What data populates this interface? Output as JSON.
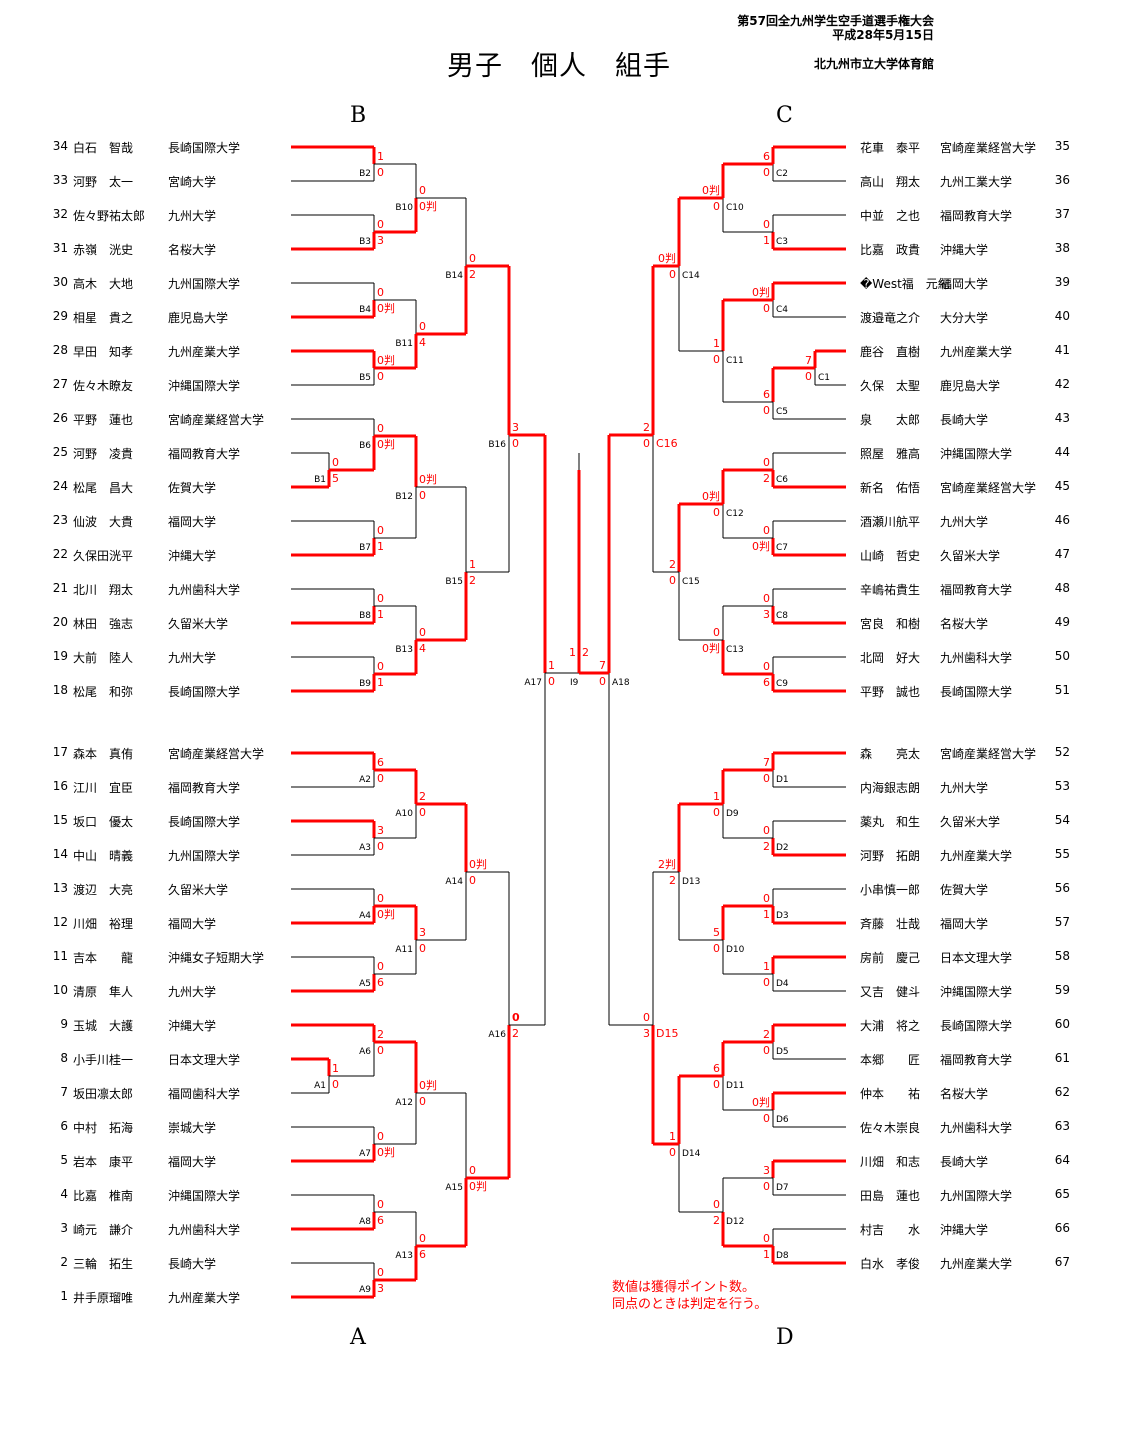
{
  "header": {
    "title": "男子　個人　組手",
    "event": "第57回全九州学生空手道選手権大会",
    "date": "平成28年5月15日",
    "venue": "北九州市立大学体育館"
  },
  "blocks": {
    "top_left": "B",
    "top_right": "C",
    "bottom_left": "A",
    "bottom_right": "D"
  },
  "note": [
    "数値は獲得ポイント数。",
    "同点のときは判定を行う。"
  ],
  "colors": {
    "winner_line": "#ff0000",
    "line": "#000000",
    "score": "#ff0000"
  },
  "players": {
    "left": [
      {
        "num": "34",
        "name": "白石　智哉",
        "univ": "長崎国際大学"
      },
      {
        "num": "33",
        "name": "河野　太一",
        "univ": "宮崎大学"
      },
      {
        "num": "32",
        "name": "佐々野祐太郎",
        "univ": "九州大学"
      },
      {
        "num": "31",
        "name": "赤嶺　洸史",
        "univ": "名桜大学"
      },
      {
        "num": "30",
        "name": "高木　大地",
        "univ": "九州国際大学"
      },
      {
        "num": "29",
        "name": "相星　貴之",
        "univ": "鹿児島大学"
      },
      {
        "num": "28",
        "name": "早田　知孝",
        "univ": "九州産業大学"
      },
      {
        "num": "27",
        "name": "佐々木瞭友",
        "univ": "沖縄国際大学"
      },
      {
        "num": "26",
        "name": "平野　蓮也",
        "univ": "宮崎産業経営大学"
      },
      {
        "num": "25",
        "name": "河野　凌貴",
        "univ": "福岡教育大学"
      },
      {
        "num": "24",
        "name": "松尾　昌大",
        "univ": "佐賀大学"
      },
      {
        "num": "23",
        "name": "仙波　大貴",
        "univ": "福岡大学"
      },
      {
        "num": "22",
        "name": "久保田洸平",
        "univ": "沖縄大学"
      },
      {
        "num": "21",
        "name": "北川　翔太",
        "univ": "九州歯科大学"
      },
      {
        "num": "20",
        "name": "林田　強志",
        "univ": "久留米大学"
      },
      {
        "num": "19",
        "name": "大前　陸人",
        "univ": "九州大学"
      },
      {
        "num": "18",
        "name": "松尾　和弥",
        "univ": "長崎国際大学"
      },
      {
        "num": "17",
        "name": "森本　真侑",
        "univ": "宮崎産業経営大学"
      },
      {
        "num": "16",
        "name": "江川　宜臣",
        "univ": "福岡教育大学"
      },
      {
        "num": "15",
        "name": "坂口　優太",
        "univ": "長崎国際大学"
      },
      {
        "num": "14",
        "name": "中山　晴義",
        "univ": "九州国際大学"
      },
      {
        "num": "13",
        "name": "渡辺　大亮",
        "univ": "久留米大学"
      },
      {
        "num": "12",
        "name": "川畑　裕理",
        "univ": "福岡大学"
      },
      {
        "num": "11",
        "name": "吉本　　龍",
        "univ": "沖縄女子短期大学"
      },
      {
        "num": "10",
        "name": "清原　隼人",
        "univ": "九州大学"
      },
      {
        "num": "9",
        "name": "玉城　大護",
        "univ": "沖縄大学"
      },
      {
        "num": "8",
        "name": "小手川桂一",
        "univ": "日本文理大学"
      },
      {
        "num": "7",
        "name": "坂田凛太郎",
        "univ": "福岡歯科大学"
      },
      {
        "num": "6",
        "name": "中村　拓海",
        "univ": "崇城大学"
      },
      {
        "num": "5",
        "name": "岩本　康平",
        "univ": "福岡大学"
      },
      {
        "num": "4",
        "name": "比嘉　椎南",
        "univ": "沖縄国際大学"
      },
      {
        "num": "3",
        "name": "崎元　謙介",
        "univ": "九州歯科大学"
      },
      {
        "num": "2",
        "name": "三輪　拓生",
        "univ": "長崎大学"
      },
      {
        "num": "1",
        "name": "井手原瑠唯",
        "univ": "九州産業大学"
      }
    ],
    "right": [
      {
        "num": "35",
        "name": "花車　泰平",
        "univ": "宮崎産業経営大学"
      },
      {
        "num": "36",
        "name": "高山　翔太",
        "univ": "九州工業大学"
      },
      {
        "num": "37",
        "name": "中並　之也",
        "univ": "福岡教育大学"
      },
      {
        "num": "38",
        "name": "比嘉　政貴",
        "univ": "沖縄大学"
      },
      {
        "num": "39",
        "name": "�West福　元紀",
        "univ": "福岡大学"
      },
      {
        "num": "40",
        "name": "渡邉竜之介",
        "univ": "大分大学"
      },
      {
        "num": "41",
        "name": "鹿谷　直樹",
        "univ": "九州産業大学"
      },
      {
        "num": "42",
        "name": "久保　太聖",
        "univ": "鹿児島大学"
      },
      {
        "num": "43",
        "name": "泉　　太郎",
        "univ": "長崎大学"
      },
      {
        "num": "44",
        "name": "照屋　雅高",
        "univ": "沖縄国際大学"
      },
      {
        "num": "45",
        "name": "新名　佑悟",
        "univ": "宮崎産業経営大学"
      },
      {
        "num": "46",
        "name": "酒瀬川航平",
        "univ": "九州大学"
      },
      {
        "num": "47",
        "name": "山崎　哲史",
        "univ": "久留米大学"
      },
      {
        "num": "48",
        "name": "辛嶋祐貴生",
        "univ": "福岡教育大学"
      },
      {
        "num": "49",
        "name": "宮良　和樹",
        "univ": "名桜大学"
      },
      {
        "num": "50",
        "name": "北岡　好大",
        "univ": "九州歯科大学"
      },
      {
        "num": "51",
        "name": "平野　誠也",
        "univ": "長崎国際大学"
      },
      {
        "num": "52",
        "name": "森　　亮太",
        "univ": "宮崎産業経営大学"
      },
      {
        "num": "53",
        "name": "内海銀志朗",
        "univ": "九州大学"
      },
      {
        "num": "54",
        "name": "薬丸　和生",
        "univ": "久留米大学"
      },
      {
        "num": "55",
        "name": "河野　拓朗",
        "univ": "九州産業大学"
      },
      {
        "num": "56",
        "name": "小串慎一郎",
        "univ": "佐賀大学"
      },
      {
        "num": "57",
        "name": "斉藤　壮哉",
        "univ": "福岡大学"
      },
      {
        "num": "58",
        "name": "房前　慶己",
        "univ": "日本文理大学"
      },
      {
        "num": "59",
        "name": "又吉　健斗",
        "univ": "沖縄国際大学"
      },
      {
        "num": "60",
        "name": "大浦　将之",
        "univ": "長崎国際大学"
      },
      {
        "num": "61",
        "name": "本郷　　匠",
        "univ": "福岡教育大学"
      },
      {
        "num": "62",
        "name": "仲本　　祐",
        "univ": "名桜大学"
      },
      {
        "num": "63",
        "name": "佐々木崇良",
        "univ": "九州歯科大学"
      },
      {
        "num": "64",
        "name": "川畑　和志",
        "univ": "長崎大学"
      },
      {
        "num": "65",
        "name": "田島　蓮也",
        "univ": "九州国際大学"
      },
      {
        "num": "66",
        "name": "村吉　　水",
        "univ": "沖縄大学"
      },
      {
        "num": "67",
        "name": "白水　孝俊",
        "univ": "九州産業大学"
      }
    ]
  },
  "matches": [
    {
      "id": "B2",
      "label": "B2",
      "top": "34",
      "bottom": "33",
      "st": "1",
      "sb": "0",
      "winner": "top"
    },
    {
      "id": "B3",
      "label": "B3",
      "top": "32",
      "bottom": "31",
      "st": "0",
      "sb": "3",
      "winner": "bottom"
    },
    {
      "id": "B4",
      "label": "B4",
      "top": "30",
      "bottom": "29",
      "st": "0",
      "sb": "0判",
      "winner": "bottom"
    },
    {
      "id": "B5",
      "label": "B5",
      "top": "28",
      "bottom": "27",
      "st": "0判",
      "sb": "0",
      "winner": "top"
    },
    {
      "id": "B1",
      "label": "B1",
      "top": "25",
      "bottom": "24",
      "st": "0",
      "sb": "5",
      "winner": "bottom"
    },
    {
      "id": "B6",
      "label": "B6",
      "top": "26",
      "bottom": "B1",
      "st": "0",
      "sb": "0判",
      "winner": "bottom"
    },
    {
      "id": "B7",
      "label": "B7",
      "top": "23",
      "bottom": "22",
      "st": "0",
      "sb": "1",
      "winner": "bottom"
    },
    {
      "id": "B8",
      "label": "B8",
      "top": "21",
      "bottom": "20",
      "st": "0",
      "sb": "1",
      "winner": "bottom"
    },
    {
      "id": "B9",
      "label": "B9",
      "top": "19",
      "bottom": "18",
      "st": "0",
      "sb": "1",
      "winner": "bottom"
    },
    {
      "id": "B10",
      "label": "B10",
      "top": "B2",
      "bottom": "B3",
      "st": "0",
      "sb": "0判",
      "winner": "bottom"
    },
    {
      "id": "B11",
      "label": "B11",
      "top": "B4",
      "bottom": "B5",
      "st": "0",
      "sb": "4",
      "winner": "bottom"
    },
    {
      "id": "B12",
      "label": "B12",
      "top": "B6",
      "bottom": "B7",
      "st": "0判",
      "sb": "0",
      "winner": "top"
    },
    {
      "id": "B13",
      "label": "B13",
      "top": "B8",
      "bottom": "B9",
      "st": "0",
      "sb": "4",
      "winner": "bottom"
    },
    {
      "id": "B14",
      "label": "B14",
      "top": "B10",
      "bottom": "B11",
      "st": "0",
      "sb": "2",
      "winner": "bottom"
    },
    {
      "id": "B15",
      "label": "B15",
      "top": "B12",
      "bottom": "B13",
      "st": "1",
      "sb": "2",
      "winner": "bottom"
    },
    {
      "id": "B16",
      "label": "B16",
      "top": "B14",
      "bottom": "B15",
      "st": "3",
      "sb": "0",
      "winner": "top"
    },
    {
      "id": "A2",
      "label": "A2",
      "top": "17",
      "bottom": "16",
      "st": "6",
      "sb": "0",
      "winner": "top"
    },
    {
      "id": "A3",
      "label": "A3",
      "top": "15",
      "bottom": "14",
      "st": "3",
      "sb": "0",
      "winner": "top"
    },
    {
      "id": "A4",
      "label": "A4",
      "top": "13",
      "bottom": "12",
      "st": "0",
      "sb": "0判",
      "winner": "bottom"
    },
    {
      "id": "A5",
      "label": "A5",
      "top": "11",
      "bottom": "10",
      "st": "0",
      "sb": "6",
      "winner": "bottom"
    },
    {
      "id": "A1",
      "label": "A1",
      "top": "8",
      "bottom": "7",
      "st": "1",
      "sb": "0",
      "winner": "top"
    },
    {
      "id": "A6",
      "label": "A6",
      "top": "9",
      "bottom": "A1",
      "st": "2",
      "sb": "0",
      "winner": "top"
    },
    {
      "id": "A7",
      "label": "A7",
      "top": "6",
      "bottom": "5",
      "st": "0",
      "sb": "0判",
      "winner": "bottom"
    },
    {
      "id": "A8",
      "label": "A8",
      "top": "4",
      "bottom": "3",
      "st": "0",
      "sb": "6",
      "winner": "bottom"
    },
    {
      "id": "A9",
      "label": "A9",
      "top": "2",
      "bottom": "1",
      "st": "0",
      "sb": "3",
      "winner": "bottom"
    },
    {
      "id": "A10",
      "label": "A10",
      "top": "A2",
      "bottom": "A3",
      "st": "2",
      "sb": "0",
      "winner": "top"
    },
    {
      "id": "A11",
      "label": "A11",
      "top": "A4",
      "bottom": "A5",
      "st": "3",
      "sb": "0",
      "winner": "top"
    },
    {
      "id": "A12",
      "label": "A12",
      "top": "A6",
      "bottom": "A7",
      "st": "0判",
      "sb": "0",
      "winner": "top"
    },
    {
      "id": "A13",
      "label": "A13",
      "top": "A8",
      "bottom": "A9",
      "st": "0",
      "sb": "6",
      "winner": "bottom"
    },
    {
      "id": "A14",
      "label": "A14",
      "top": "A10",
      "bottom": "A11",
      "st": "0判",
      "sb": "0",
      "winner": "top"
    },
    {
      "id": "A15",
      "label": "A15",
      "top": "A12",
      "bottom": "A13",
      "st": "0",
      "sb": "0判",
      "winner": "bottom"
    },
    {
      "id": "A16",
      "label": "A16",
      "top": "A14",
      "bottom": "A15",
      "st": "0",
      "sb": "2",
      "winner": "bottom"
    },
    {
      "id": "A17",
      "label": "A17",
      "top": "B16",
      "bottom": "A16",
      "st": "1",
      "sb": "0",
      "winner": "top"
    },
    {
      "id": "C2",
      "label": "C2",
      "top": "35",
      "bottom": "36",
      "st": "6",
      "sb": "0",
      "winner": "top"
    },
    {
      "id": "C3",
      "label": "C3",
      "top": "37",
      "bottom": "38",
      "st": "0",
      "sb": "1",
      "winner": "bottom"
    },
    {
      "id": "C4",
      "label": "C4",
      "top": "39",
      "bottom": "40",
      "st": "0判",
      "sb": "0",
      "winner": "top"
    },
    {
      "id": "C1",
      "label": "C1",
      "top": "41",
      "bottom": "42",
      "st": "7",
      "sb": "0",
      "winner": "top"
    },
    {
      "id": "C5",
      "label": "C5",
      "top": "C1",
      "bottom": "43",
      "st": "6",
      "sb": "0",
      "winner": "top"
    },
    {
      "id": "C6",
      "label": "C6",
      "top": "44",
      "bottom": "45",
      "st": "0",
      "sb": "2",
      "winner": "bottom"
    },
    {
      "id": "C7",
      "label": "C7",
      "top": "46",
      "bottom": "47",
      "st": "0",
      "sb": "0判",
      "winner": "bottom"
    },
    {
      "id": "C8",
      "label": "C8",
      "top": "48",
      "bottom": "49",
      "st": "0",
      "sb": "3",
      "winner": "bottom"
    },
    {
      "id": "C9",
      "label": "C9",
      "top": "50",
      "bottom": "51",
      "st": "0",
      "sb": "6",
      "winner": "bottom"
    },
    {
      "id": "C10",
      "label": "C10",
      "top": "C2",
      "bottom": "C3",
      "st": "0判",
      "sb": "0",
      "winner": "top"
    },
    {
      "id": "C11",
      "label": "C11",
      "top": "C4",
      "bottom": "C5",
      "st": "1",
      "sb": "0",
      "winner": "top"
    },
    {
      "id": "C12",
      "label": "C12",
      "top": "C6",
      "bottom": "C7",
      "st": "0判",
      "sb": "0",
      "winner": "top"
    },
    {
      "id": "C13",
      "label": "C13",
      "top": "C8",
      "bottom": "C9",
      "st": "0",
      "sb": "0判",
      "winner": "bottom"
    },
    {
      "id": "C14",
      "label": "C14",
      "top": "C10",
      "bottom": "C11",
      "st": "0判",
      "sb": "0",
      "winner": "top"
    },
    {
      "id": "C15",
      "label": "C15",
      "top": "C12",
      "bottom": "C13",
      "st": "2",
      "sb": "0",
      "winner": "top"
    },
    {
      "id": "C16",
      "label": "C16",
      "top": "C14",
      "bottom": "C15",
      "st": "2",
      "sb": "0",
      "winner": "top"
    },
    {
      "id": "D1",
      "label": "D1",
      "top": "52",
      "bottom": "53",
      "st": "7",
      "sb": "0",
      "winner": "top"
    },
    {
      "id": "D2",
      "label": "D2",
      "top": "54",
      "bottom": "55",
      "st": "0",
      "sb": "2",
      "winner": "bottom"
    },
    {
      "id": "D3",
      "label": "D3",
      "top": "56",
      "bottom": "57",
      "st": "0",
      "sb": "1",
      "winner": "bottom"
    },
    {
      "id": "D4",
      "label": "D4",
      "top": "58",
      "bottom": "59",
      "st": "1",
      "sb": "0",
      "winner": "top"
    },
    {
      "id": "D5",
      "label": "D5",
      "top": "60",
      "bottom": "61",
      "st": "2",
      "sb": "0",
      "winner": "top"
    },
    {
      "id": "D6",
      "label": "D6",
      "top": "62",
      "bottom": "63",
      "st": "0判",
      "sb": "0",
      "winner": "top"
    },
    {
      "id": "D7",
      "label": "D7",
      "top": "64",
      "bottom": "65",
      "st": "3",
      "sb": "0",
      "winner": "top"
    },
    {
      "id": "D8",
      "label": "D8",
      "top": "66",
      "bottom": "67",
      "st": "0",
      "sb": "1",
      "winner": "bottom"
    },
    {
      "id": "D9",
      "label": "D9",
      "top": "D1",
      "bottom": "D2",
      "st": "1",
      "sb": "0",
      "winner": "top"
    },
    {
      "id": "D10",
      "label": "D10",
      "top": "D3",
      "bottom": "D4",
      "st": "5",
      "sb": "0",
      "winner": "top"
    },
    {
      "id": "D11",
      "label": "D11",
      "top": "D5",
      "bottom": "D6",
      "st": "6",
      "sb": "0",
      "winner": "top"
    },
    {
      "id": "D12",
      "label": "D12",
      "top": "D7",
      "bottom": "D8",
      "st": "0",
      "sb": "2",
      "winner": "bottom"
    },
    {
      "id": "D13",
      "label": "D13",
      "top": "D9",
      "bottom": "D10",
      "st": "2判",
      "sb": "2",
      "winner": "top"
    },
    {
      "id": "D14",
      "label": "D14",
      "top": "D11",
      "bottom": "D12",
      "st": "1",
      "sb": "0",
      "winner": "top"
    },
    {
      "id": "D15",
      "label": "D15",
      "top": "D13",
      "bottom": "D14",
      "st": "0",
      "sb": "3",
      "winner": "bottom"
    },
    {
      "id": "A18",
      "label": "A18",
      "top": "C16",
      "bottom": "D15",
      "st": "7",
      "sb": "0",
      "winner": "top"
    }
  ],
  "final": {
    "id": "I9",
    "label": "I9",
    "left": "A17",
    "right": "A18",
    "sl": "1",
    "sr": "2",
    "winner": "right"
  }
}
